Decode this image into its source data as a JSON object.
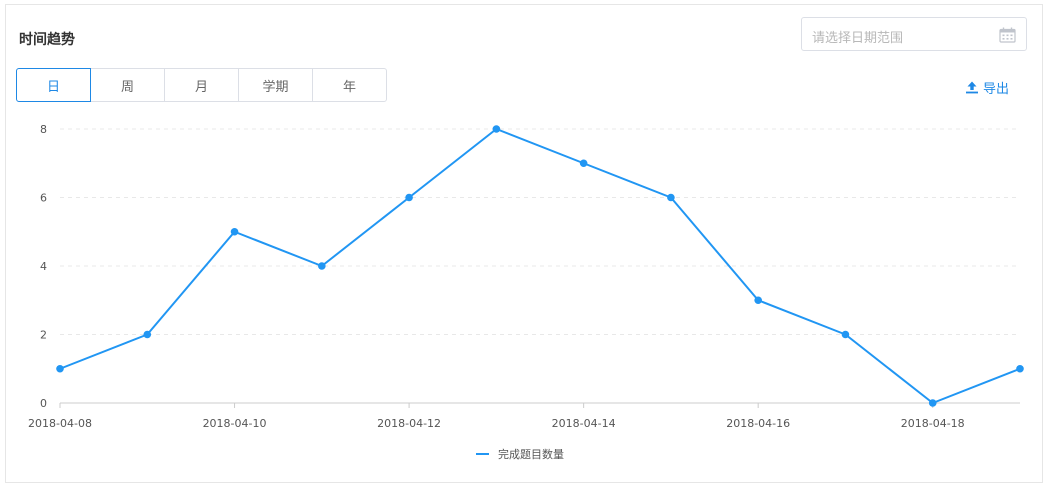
{
  "header": {
    "title": "时间趋势",
    "date_placeholder": "请选择日期范围",
    "export_label": "导出"
  },
  "tabs": [
    {
      "label": "日",
      "active": true
    },
    {
      "label": "周",
      "active": false
    },
    {
      "label": "月",
      "active": false
    },
    {
      "label": "学期",
      "active": false
    },
    {
      "label": "年",
      "active": false
    }
  ],
  "colors": {
    "accent": "#1e88e5",
    "series": "#2196f3",
    "grid": "#e8e8e8",
    "axis": "#cccccc",
    "tick_text": "#555555"
  },
  "icons": {
    "calendar": "calendar-icon",
    "export": "upload-icon"
  },
  "chart_data": {
    "type": "line",
    "x": [
      "2018-04-08",
      "2018-04-09",
      "2018-04-10",
      "2018-04-11",
      "2018-04-12",
      "2018-04-13",
      "2018-04-14",
      "2018-04-15",
      "2018-04-16",
      "2018-04-17",
      "2018-04-18",
      "2018-04-19"
    ],
    "x_tick_labels": [
      "2018-04-08",
      "2018-04-10",
      "2018-04-12",
      "2018-04-14",
      "2018-04-16",
      "2018-04-18"
    ],
    "series": [
      {
        "name": "完成题目数量",
        "values": [
          1,
          2,
          5,
          4,
          6,
          8,
          7,
          6,
          3,
          2,
          0,
          1
        ]
      }
    ],
    "y_ticks": [
      0,
      2,
      4,
      6,
      8
    ],
    "ylim": [
      0,
      8
    ],
    "grid": true,
    "legend": "bottom-center",
    "title": "",
    "xlabel": "",
    "ylabel": ""
  }
}
